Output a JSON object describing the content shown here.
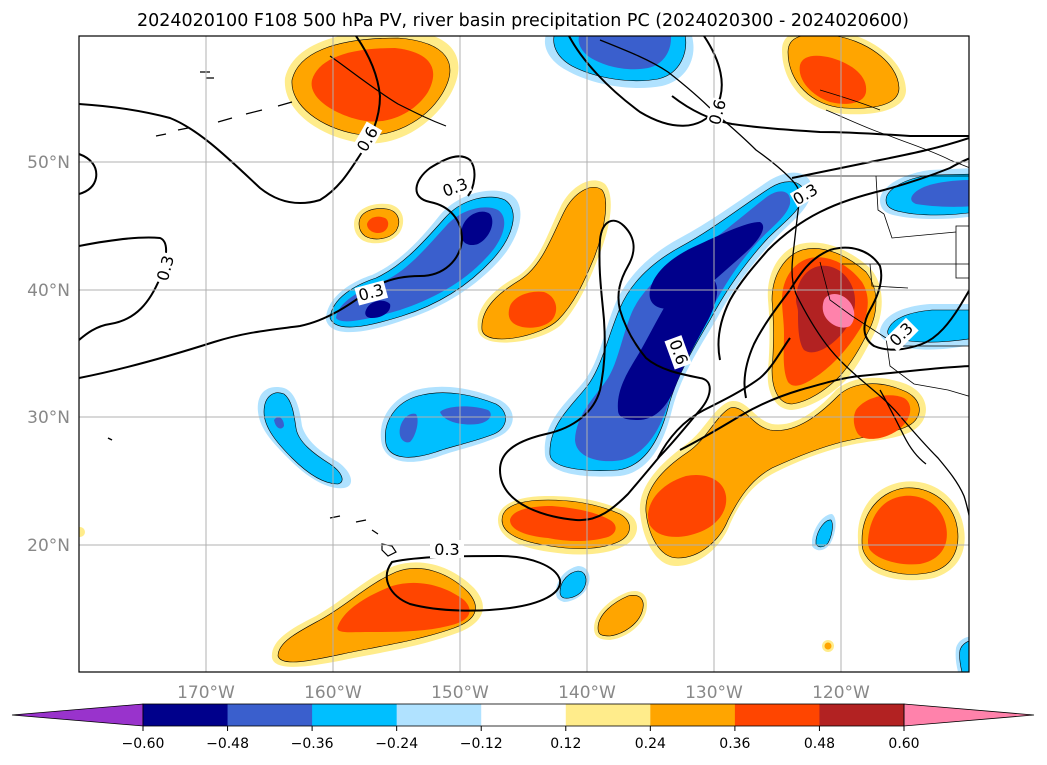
{
  "title": "2024020100 F108 500 hPa PV, river basin precipitation PC (2024020300 - 2024020600)",
  "map": {
    "lon_ticks": [
      "170°W",
      "160°W",
      "150°W",
      "140°W",
      "130°W",
      "120°W"
    ],
    "lat_ticks": [
      "50°N",
      "40°N",
      "30°N",
      "20°N"
    ],
    "contour_labels": [
      "0.6",
      "0.3",
      "0.3",
      "0.3",
      "0.3",
      "0.6",
      "0.3",
      "0.3",
      "0.6"
    ]
  },
  "colorbar": {
    "ticks": [
      "−0.60",
      "−0.48",
      "−0.36",
      "−0.24",
      "−0.12",
      "0.12",
      "0.24",
      "0.36",
      "0.48",
      "0.60"
    ],
    "colors": [
      "#9933cc",
      "#00008b",
      "#3a5fcd",
      "#00bfff",
      "#b0e2ff",
      "#ffffff",
      "#ffec8b",
      "#ffa500",
      "#ff4500",
      "#b22222",
      "#ff82ab"
    ]
  },
  "palette": {
    "navy": "#00008b",
    "royal_blue": "#3a5fcd",
    "sky_blue": "#00bfff",
    "light_blue": "#b0e2ff",
    "light_yellow": "#ffec8b",
    "orange": "#ffa500",
    "orange_red": "#ff4500",
    "firebrick": "#b22222",
    "pink": "#ff82ab"
  }
}
